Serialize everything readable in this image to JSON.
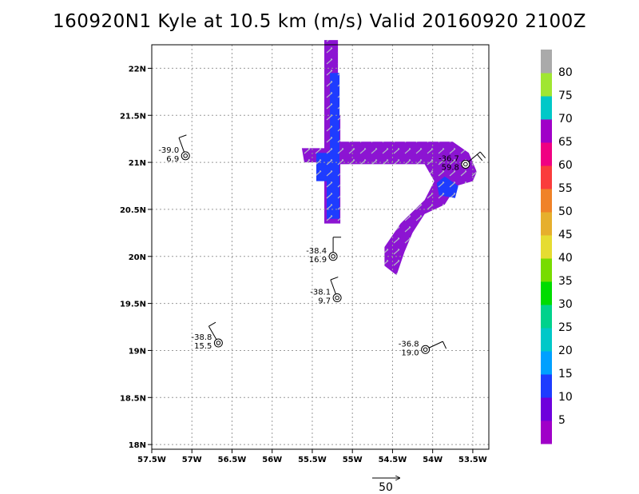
{
  "title": "160920N1 Kyle at 10.5 km (m/s) Valid 20160920  2100Z",
  "chart_data": {
    "type": "scatter",
    "title": "160920N1 Kyle at 10.5 km (m/s) Valid 20160920  2100Z",
    "xlim": [
      -57.5,
      -53.3
    ],
    "ylim": [
      17.95,
      22.25
    ],
    "grid": true,
    "x_ticks": [
      -57.5,
      -57,
      -56.5,
      -56,
      -55.5,
      -55,
      -54.5,
      -54,
      -53.5
    ],
    "x_tick_labels": [
      "57.5W",
      "57W",
      "56.5W",
      "56W",
      "55.5W",
      "55W",
      "54.5W",
      "54W",
      "53.5W"
    ],
    "y_ticks": [
      18,
      18.5,
      19,
      19.5,
      20,
      20.5,
      21,
      21.5,
      22
    ],
    "y_tick_labels": [
      "18N",
      "18.5N",
      "19N",
      "19.5N",
      "20N",
      "20.5N",
      "21N",
      "21.5N",
      "22N"
    ],
    "colorbar": {
      "labels": [
        "5",
        "10",
        "15",
        "20",
        "25",
        "30",
        "35",
        "40",
        "45",
        "50",
        "55",
        "60",
        "65",
        "70",
        "75",
        "80"
      ],
      "colors": [
        "#a000c8",
        "#6e00dc",
        "#1e3cff",
        "#00a0ff",
        "#00c8c8",
        "#00d28c",
        "#00dc00",
        "#78dc00",
        "#e6dc32",
        "#e6af2d",
        "#f08228",
        "#fa3c3c",
        "#f00082",
        "#a000c8",
        "#00c8c8",
        "#a0e632",
        "#aaaaaa"
      ]
    },
    "wind_regions": [
      {
        "speed_class": "5-10",
        "color": "#8c14d2",
        "polygon": [
          [
            -55.18,
            22.3
          ],
          [
            -55.18,
            21.5
          ],
          [
            -55.15,
            21.5
          ],
          [
            -55.15,
            20.35
          ],
          [
            -55.35,
            20.35
          ],
          [
            -55.35,
            21.0
          ],
          [
            -55.6,
            21.0
          ],
          [
            -55.63,
            21.15
          ],
          [
            -55.35,
            21.15
          ],
          [
            -55.35,
            22.3
          ]
        ]
      },
      {
        "speed_class": "5-10",
        "color": "#8c14d2",
        "polygon": [
          [
            -55.2,
            21.1
          ],
          [
            -55.2,
            21.22
          ],
          [
            -53.75,
            21.22
          ],
          [
            -53.55,
            21.1
          ],
          [
            -53.45,
            20.9
          ],
          [
            -53.5,
            20.8
          ],
          [
            -53.7,
            20.75
          ],
          [
            -53.85,
            20.55
          ],
          [
            -54.1,
            20.45
          ],
          [
            -54.25,
            20.25
          ],
          [
            -54.35,
            20.05
          ],
          [
            -54.45,
            19.8
          ],
          [
            -54.6,
            19.9
          ],
          [
            -54.6,
            20.1
          ],
          [
            -54.4,
            20.35
          ],
          [
            -54.1,
            20.6
          ],
          [
            -53.98,
            20.8
          ],
          [
            -54.1,
            20.98
          ],
          [
            -55.2,
            20.98
          ]
        ]
      },
      {
        "speed_class": "10-15",
        "color": "#1e3cff",
        "polygon": [
          [
            -55.28,
            21.95
          ],
          [
            -55.16,
            21.95
          ],
          [
            -55.16,
            20.4
          ],
          [
            -55.32,
            20.4
          ],
          [
            -55.32,
            20.8
          ],
          [
            -55.45,
            20.8
          ],
          [
            -55.45,
            21.1
          ],
          [
            -55.28,
            21.1
          ]
        ]
      },
      {
        "speed_class": "10-15",
        "color": "#1e3cff",
        "polygon": [
          [
            -53.92,
            20.65
          ],
          [
            -53.72,
            20.62
          ],
          [
            -53.68,
            20.75
          ],
          [
            -53.85,
            20.85
          ],
          [
            -53.95,
            20.78
          ]
        ]
      }
    ],
    "soundings": [
      {
        "lon": -57.08,
        "lat": 21.07,
        "label_top": "-39.0",
        "label_bottom": "6.9",
        "barb_dir": 200,
        "barb_flags": 1
      },
      {
        "lon": -55.24,
        "lat": 20.0,
        "label_top": "-38.4",
        "label_bottom": "16.9",
        "barb_dir": 180,
        "barb_flags": 1
      },
      {
        "lon": -55.19,
        "lat": 19.56,
        "label_top": "-38.1",
        "label_bottom": "9.7",
        "barb_dir": 200,
        "barb_flags": 1
      },
      {
        "lon": -56.67,
        "lat": 19.08,
        "label_top": "-38.8",
        "label_bottom": "15.5",
        "barb_dir": 210,
        "barb_flags": 1
      },
      {
        "lon": -54.09,
        "lat": 19.01,
        "label_top": "-36.8",
        "label_bottom": "19.0",
        "barb_dir": 115,
        "barb_flags": 1
      },
      {
        "lon": -53.59,
        "lat": 20.98,
        "label_top": "-36.7",
        "label_bottom": "59.8",
        "barb_dir": 130,
        "barb_flags": 2
      }
    ],
    "reference_vector": {
      "label": "50"
    }
  }
}
